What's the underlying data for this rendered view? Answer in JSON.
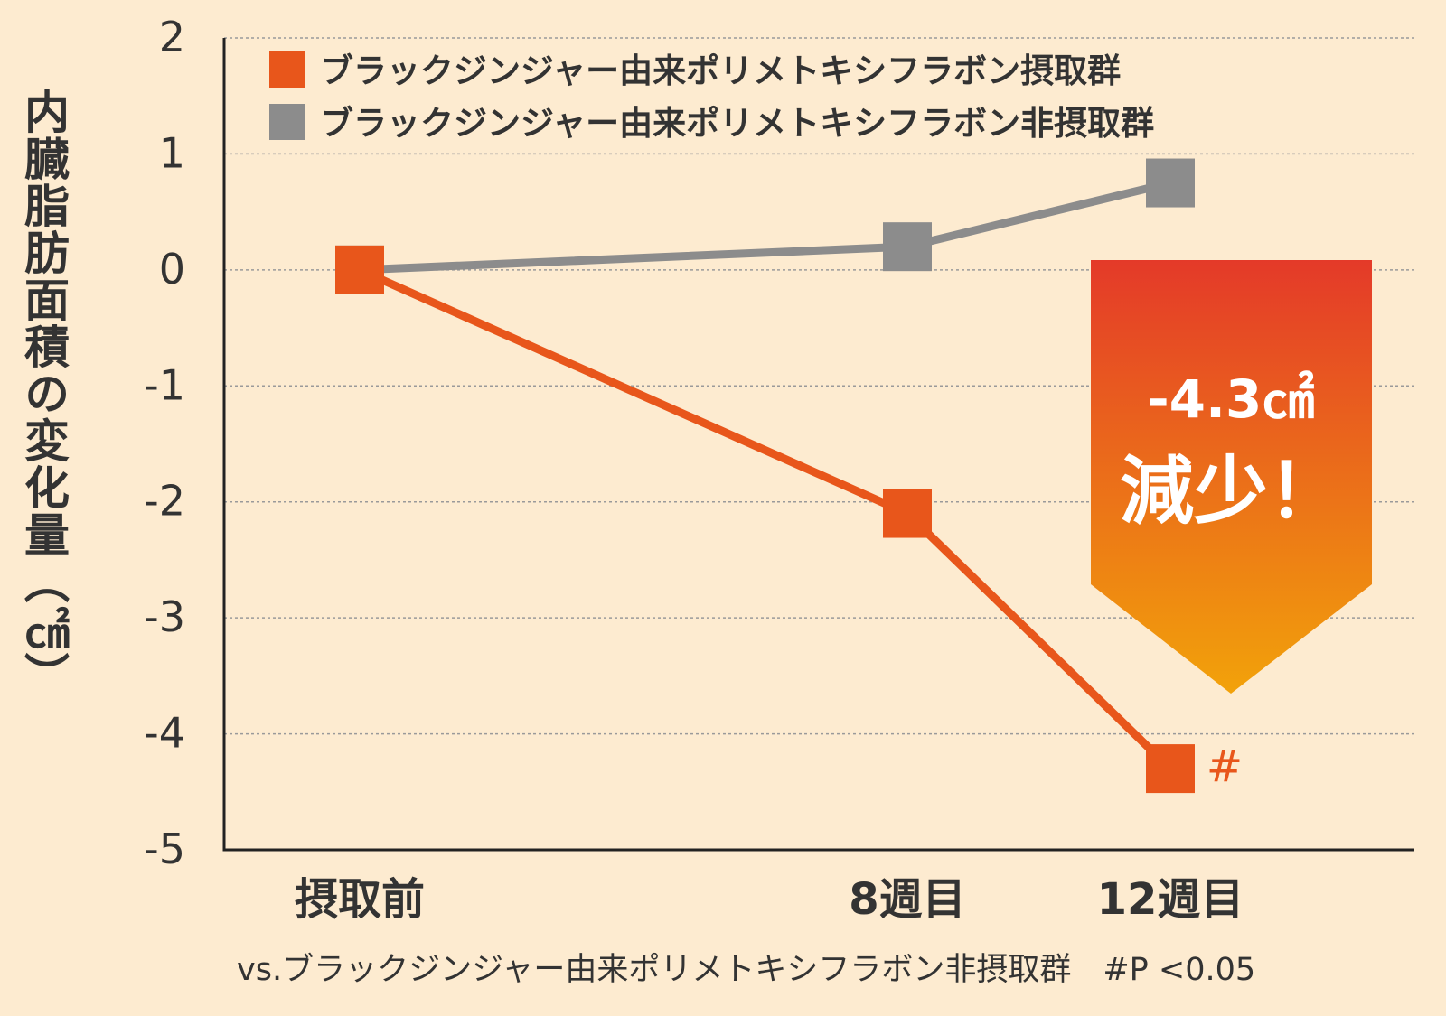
{
  "chart_data": {
    "type": "line",
    "categories": [
      "摂取前",
      "8週目",
      "12週目"
    ],
    "x_positions": [
      0,
      8,
      12
    ],
    "ylabel": "内臓脂肪面積の変化量（㎠）",
    "ylim": [
      -5,
      2
    ],
    "yticks": [
      "2",
      "1",
      "0",
      "-1",
      "-2",
      "-3",
      "-4",
      "-5"
    ],
    "ytick_values": [
      2,
      1,
      0,
      -1,
      -2,
      -3,
      -4,
      -5
    ],
    "grid": true,
    "legend_position": "top-left",
    "series": [
      {
        "name": "ブラックジンジャー由来ポリメトキシフラボン摂取群",
        "values": [
          0,
          -2.1,
          -4.3
        ],
        "color": "#e8561b",
        "marker_annotations": [
          "",
          "",
          "#"
        ]
      },
      {
        "name": "ブラックジンジャー由来ポリメトキシフラボン非摂取群",
        "values": [
          0,
          0.2,
          0.75
        ],
        "color": "#8c8c8c",
        "marker_annotations": [
          "",
          "",
          ""
        ]
      }
    ],
    "callout": {
      "value_text": "-4.3㎠",
      "label_text": "減少！",
      "gradient_top": "#e43a29",
      "gradient_bottom": "#f2a20a"
    },
    "footnote": "vs.ブラックジンジャー由来ポリメトキシフラボン非摂取群　#P <0.05"
  },
  "colors": {
    "background": "#fdebd0",
    "axis": "#222222",
    "grid": "#9a9a9a",
    "text": "#333333"
  }
}
